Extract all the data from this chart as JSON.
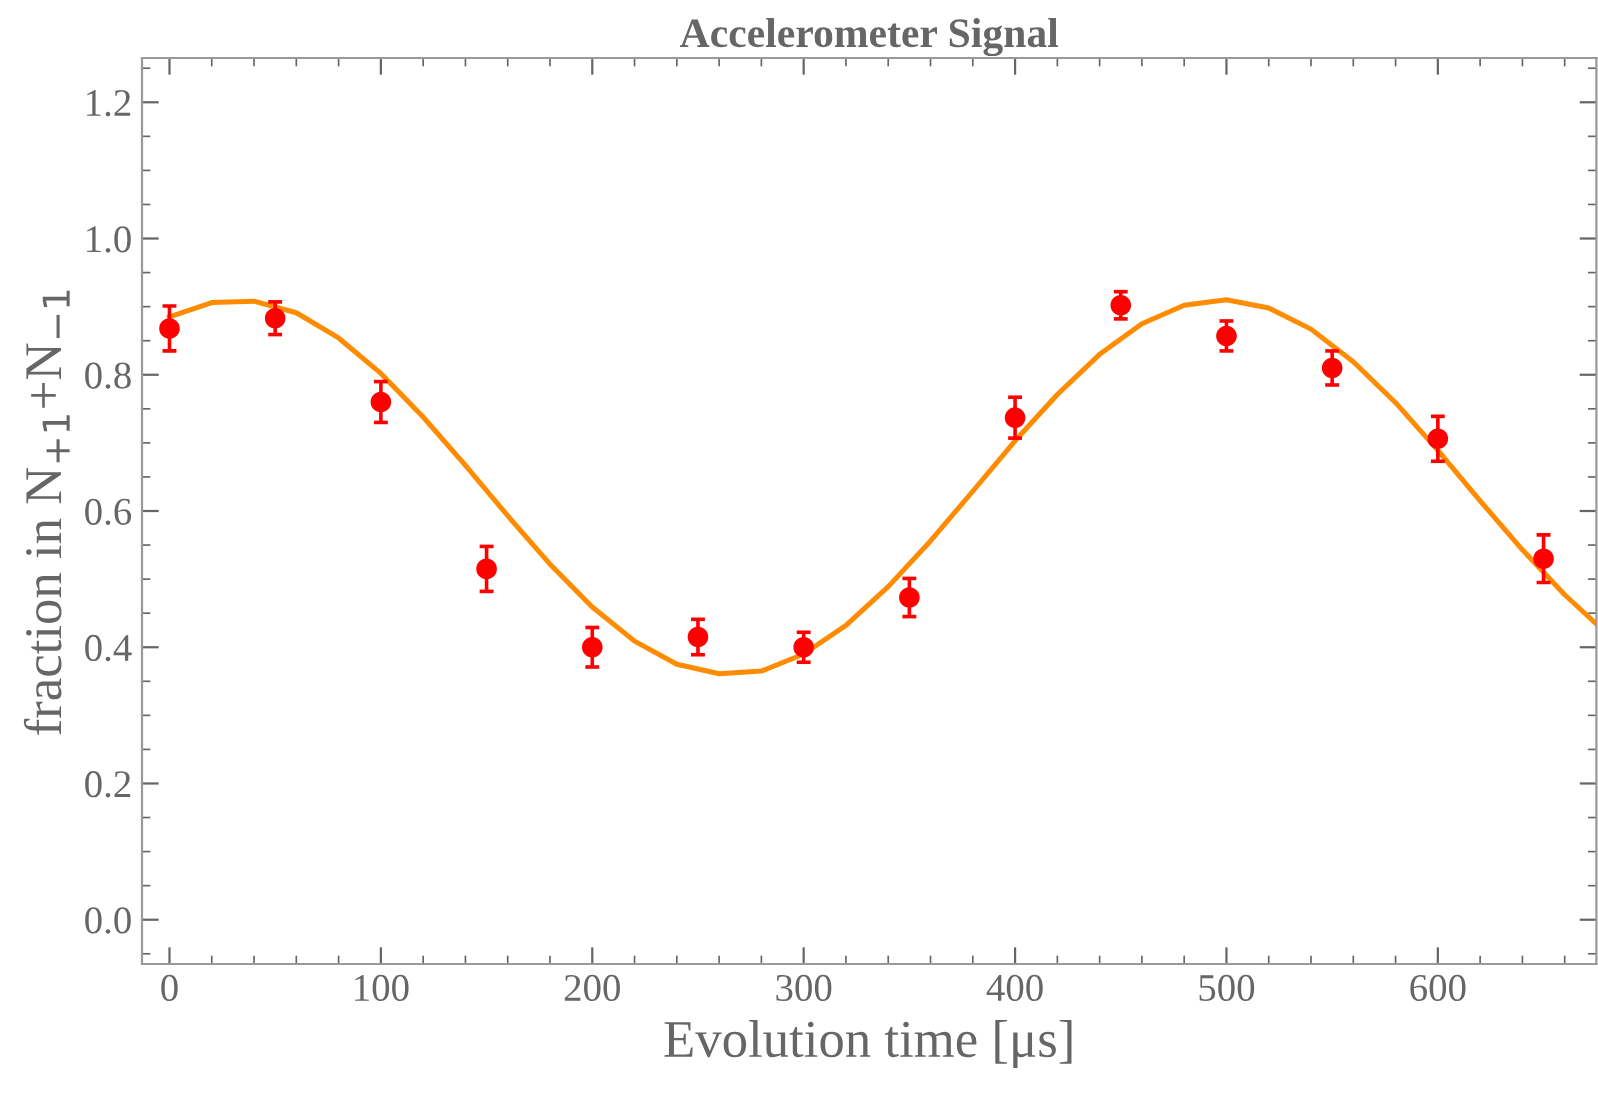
{
  "chart_data": {
    "type": "scatter",
    "title": "Accelerometer Signal",
    "xlabel": "Evolution time [μs]",
    "ylabel": "fraction in N$_{+1}$+N$_{−1}$",
    "xlim": [
      -13,
      675
    ],
    "xticks": [
      0,
      100,
      200,
      300,
      400,
      500,
      600
    ],
    "ylim": [
      -0.065,
      1.265
    ],
    "yticks": [
      {
        "value": 0,
        "label": "0.0"
      },
      0.2,
      0.4,
      0.6,
      0.8,
      {
        "value": 1,
        "label": "1.0"
      },
      1.2
    ],
    "grid": false,
    "legend": false,
    "series": [
      {
        "type": "line",
        "color": "#ff8c00",
        "marker": "none",
        "line_style": "solid",
        "x": [
          0,
          20,
          40,
          60,
          80,
          100,
          120,
          140,
          160,
          180,
          200,
          220,
          240,
          260,
          280,
          300,
          320,
          340,
          360,
          380,
          400,
          420,
          440,
          460,
          480,
          500,
          520,
          540,
          560,
          580,
          600,
          620,
          640,
          660,
          675
        ],
        "values": [
          0.885,
          0.906,
          0.908,
          0.891,
          0.854,
          0.802,
          0.738,
          0.667,
          0.593,
          0.522,
          0.459,
          0.409,
          0.375,
          0.361,
          0.365,
          0.39,
          0.432,
          0.489,
          0.556,
          0.629,
          0.703,
          0.771,
          0.83,
          0.875,
          0.902,
          0.91,
          0.898,
          0.867,
          0.819,
          0.759,
          0.689,
          0.615,
          0.543,
          0.477,
          0.434
        ]
      },
      {
        "color": "#ff0000",
        "marker": "circle",
        "x": [
          0,
          50,
          100,
          150,
          200,
          250,
          300,
          350,
          400,
          450,
          500,
          550,
          600,
          650
        ],
        "values": [
          0.868,
          0.883,
          0.76,
          0.515,
          0.4,
          0.415,
          0.4,
          0.473,
          0.737,
          0.902,
          0.857,
          0.81,
          0.706,
          0.53
        ],
        "errors": [
          0.033,
          0.024,
          0.03,
          0.033,
          0.029,
          0.026,
          0.022,
          0.028,
          0.03,
          0.02,
          0.022,
          0.025,
          0.033,
          0.035
        ]
      }
    ]
  }
}
